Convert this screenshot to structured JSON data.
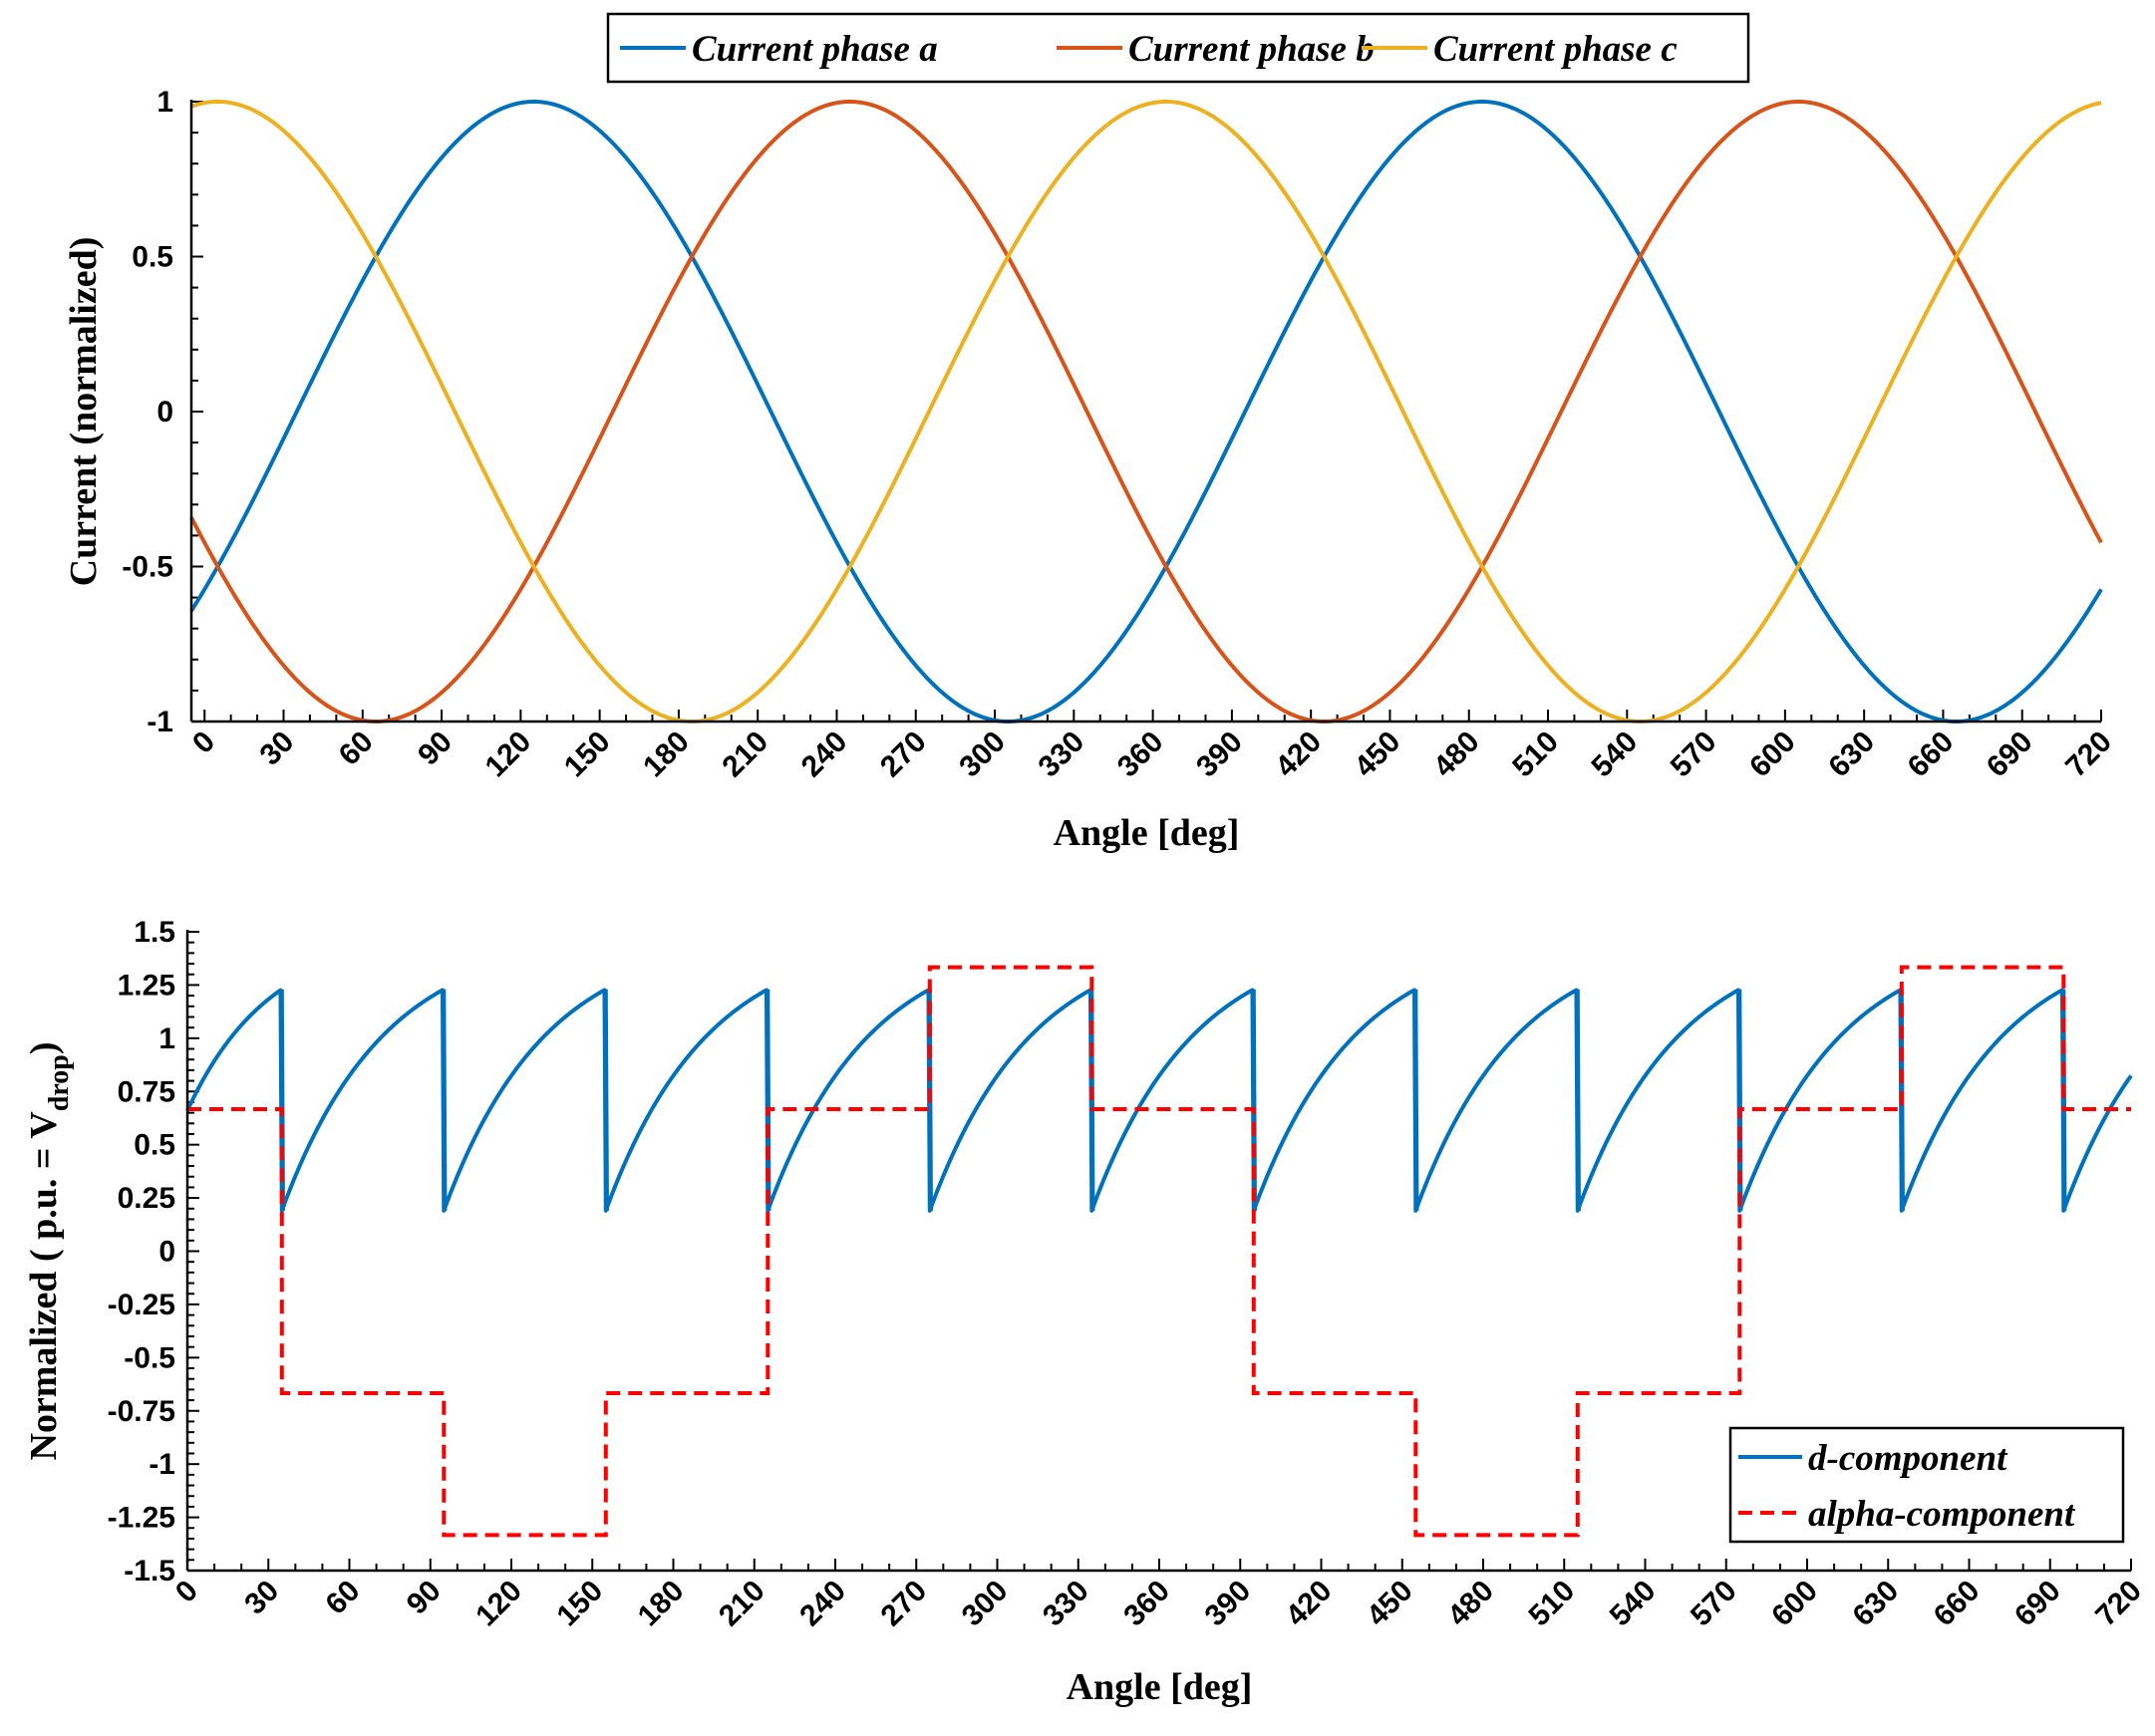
{
  "colors": {
    "phase_a": "#0072BD",
    "phase_b": "#D95319",
    "phase_c": "#EDB120",
    "d_component": "#0072BD",
    "alpha_component": "#FF0000"
  },
  "chart_data": [
    {
      "type": "line",
      "xlabel": "Angle [deg]",
      "ylabel": "Current (normalized)",
      "xlim": [
        -5,
        720
      ],
      "ylim": [
        -1,
        1
      ],
      "xticks": [
        0,
        30,
        60,
        90,
        120,
        150,
        180,
        210,
        240,
        270,
        300,
        330,
        360,
        390,
        420,
        450,
        480,
        510,
        540,
        570,
        600,
        630,
        660,
        690,
        720
      ],
      "yticks": [
        -1,
        -0.5,
        0,
        0.5,
        1
      ],
      "ytick_labels": [
        "-1",
        "-0.5",
        "0",
        "0.5",
        "1"
      ],
      "legend": {
        "location": "top-center",
        "orientation": "horizontal"
      },
      "series": [
        {
          "name": "Current phase a",
          "color": "#0072BD",
          "function": "cos",
          "peak_deg": 125,
          "period_deg": 360,
          "amplitude": 1
        },
        {
          "name": "Current phase b",
          "color": "#D95319",
          "function": "cos",
          "peak_deg": 245,
          "period_deg": 360,
          "amplitude": 1
        },
        {
          "name": "Current phase c",
          "color": "#EDB120",
          "function": "cos",
          "peak_deg": 5,
          "period_deg": 360,
          "amplitude": 1
        }
      ]
    },
    {
      "type": "line",
      "xlabel": "Angle [deg]",
      "ylabel_main": "Normalized ( p.u. = V",
      "ylabel_sub": "drop",
      "ylabel_end": ")",
      "xlim": [
        0,
        720
      ],
      "ylim": [
        -1.5,
        1.5
      ],
      "xticks": [
        0,
        30,
        60,
        90,
        120,
        150,
        180,
        210,
        240,
        270,
        300,
        330,
        360,
        390,
        420,
        450,
        480,
        510,
        540,
        570,
        600,
        630,
        660,
        690,
        720
      ],
      "yticks": [
        -1.5,
        -1.25,
        -1,
        -0.75,
        -0.5,
        -0.25,
        0,
        0.25,
        0.5,
        0.75,
        1,
        1.25,
        1.5
      ],
      "ytick_labels": [
        "-1.5",
        "-1.25",
        "-1",
        "-0.75",
        "-0.5",
        "-0.25",
        "0",
        "0.25",
        "0.5",
        "0.75",
        "1",
        "1.25",
        "1.5"
      ],
      "legend": {
        "location": "bottom-right"
      },
      "series": [
        {
          "name": "d-component",
          "color": "#0072BD",
          "style": "solid",
          "sawtooth": {
            "period_deg": 60,
            "first_drop_deg": 35,
            "low": 0.19,
            "high": 1.23,
            "start_value": 0.66
          }
        },
        {
          "name": "alpha-component",
          "color": "#FF0000",
          "style": "dashed",
          "steps": [
            {
              "x0": 0,
              "x1": 35,
              "y": 0.6667
            },
            {
              "x0": 35,
              "x1": 95,
              "y": -0.6667
            },
            {
              "x0": 95,
              "x1": 155,
              "y": -1.3333
            },
            {
              "x0": 155,
              "x1": 215,
              "y": -0.6667
            },
            {
              "x0": 215,
              "x1": 275,
              "y": 0.6667
            },
            {
              "x0": 275,
              "x1": 335,
              "y": 1.3333
            },
            {
              "x0": 335,
              "x1": 395,
              "y": 0.6667
            },
            {
              "x0": 395,
              "x1": 455,
              "y": -0.6667
            },
            {
              "x0": 455,
              "x1": 515,
              "y": -1.3333
            },
            {
              "x0": 515,
              "x1": 575,
              "y": -0.6667
            },
            {
              "x0": 575,
              "x1": 635,
              "y": 0.6667
            },
            {
              "x0": 635,
              "x1": 695,
              "y": 1.3333
            },
            {
              "x0": 695,
              "x1": 720,
              "y": 0.6667
            }
          ]
        }
      ]
    }
  ]
}
